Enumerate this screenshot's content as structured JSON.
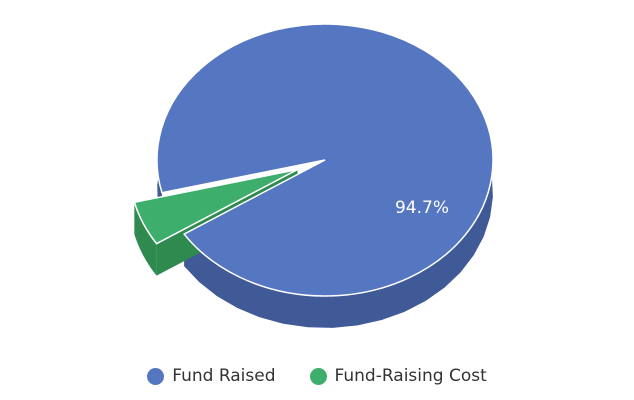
{
  "chart_data": {
    "type": "pie",
    "title": "",
    "slices": [
      {
        "name": "Fund Raised",
        "value": 94.7,
        "label": "94.7%",
        "color": "#5577c1",
        "side_color": "#3f5a96"
      },
      {
        "name": "Fund-Raising Cost",
        "value": 5.3,
        "label": "",
        "color": "#3dae6b",
        "side_color": "#2f8a4f"
      }
    ],
    "legend_placement": "bottom-center",
    "three_d": true
  },
  "legend": [
    {
      "label": "Fund Raised",
      "color": "#5577c1"
    },
    {
      "label": "Fund-Raising Cost",
      "color": "#3dae6b"
    }
  ]
}
